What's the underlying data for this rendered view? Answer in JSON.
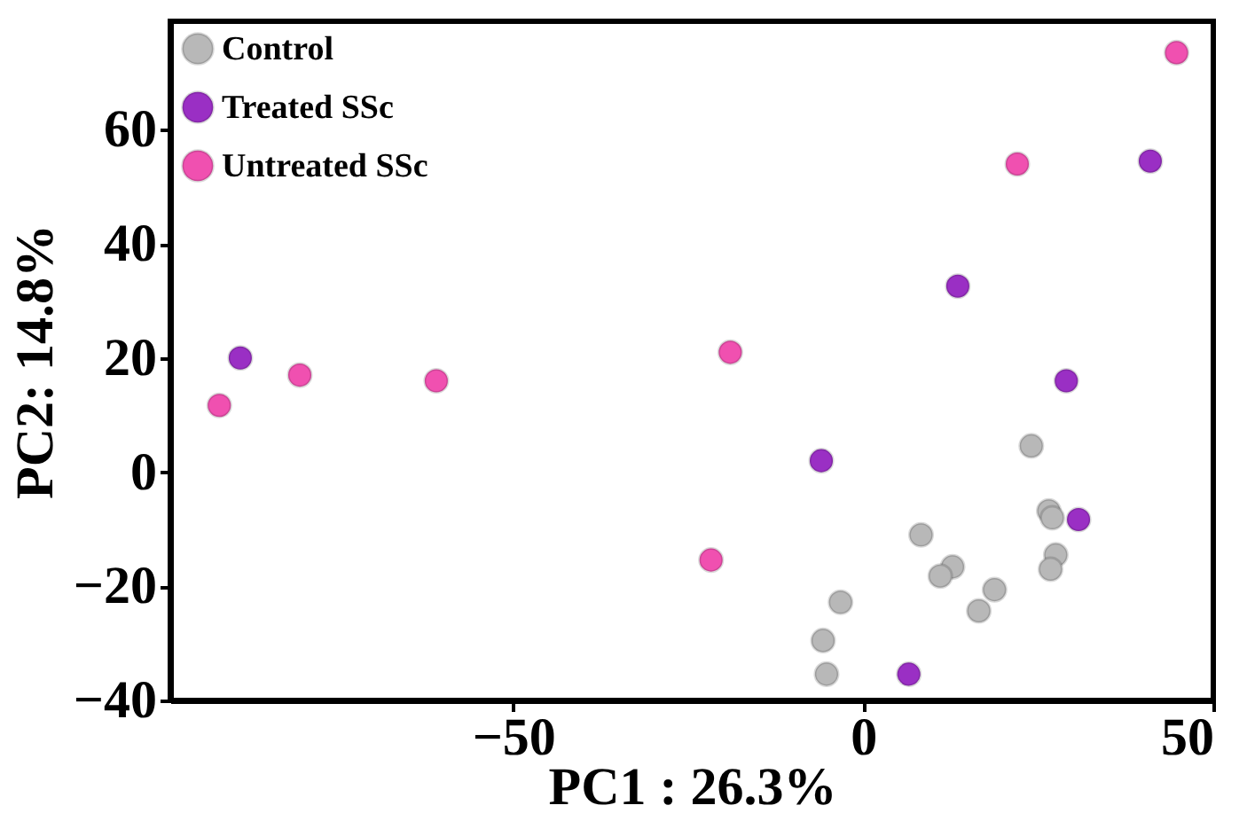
{
  "chart_data": {
    "type": "scatter",
    "xlabel": "PC1 : 26.3%",
    "ylabel": "PC2: 14.8%",
    "xlim": [
      -99,
      50
    ],
    "ylim": [
      -40,
      79
    ],
    "xticks": [
      -50,
      0,
      50
    ],
    "yticks": [
      -40,
      -20,
      0,
      20,
      40,
      60
    ],
    "grid": false,
    "legend": "top left",
    "marker": "circle",
    "series": [
      {
        "name": "Control",
        "color": "#b8b8b8",
        "x": [
          24,
          26.5,
          27,
          27.5,
          26.75,
          8.25,
          12.75,
          11,
          18.75,
          16.5,
          -3.25,
          -5.75,
          -5.25
        ],
        "values": [
          4.6,
          -6.8,
          -8,
          -14.5,
          -17,
          -11,
          -16.6,
          -18.2,
          -20.6,
          -24.3,
          -22.8,
          -29.5,
          -35.4
        ]
      },
      {
        "name": "Treated SSc",
        "color": "#9a2fc4",
        "x": [
          -89,
          -6,
          13.5,
          29,
          30.75,
          41,
          6.5
        ],
        "values": [
          20,
          2,
          32.6,
          16,
          -8.3,
          54.5,
          -35.4
        ]
      },
      {
        "name": "Untreated SSc",
        "color": "#f050b0",
        "x": [
          -92,
          -80.5,
          -61,
          -19,
          -21.75,
          22,
          44.75
        ],
        "values": [
          11.7,
          17,
          16,
          21,
          -15.4,
          54,
          73.5
        ]
      }
    ]
  }
}
